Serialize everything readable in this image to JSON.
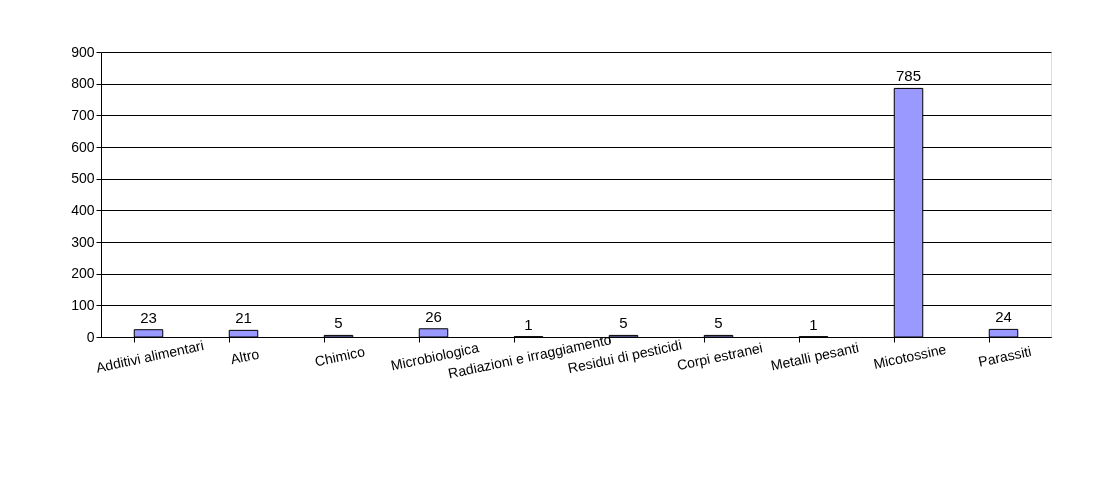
{
  "chart_data": {
    "type": "bar",
    "categories": [
      "Additivi alimentari",
      "Altro",
      "Chimico",
      "Microbiologica",
      "Radiazioni e irraggiamento",
      "Residui di pesticidi",
      "Corpi estranei",
      "Metalli pesanti",
      "Micotossine",
      "Parassiti"
    ],
    "values": [
      23,
      21,
      5,
      26,
      1,
      5,
      5,
      1,
      785,
      24
    ],
    "color": "#9999ff",
    "ylim": [
      0,
      900
    ],
    "yticks": [
      0,
      100,
      200,
      300,
      400,
      500,
      600,
      700,
      800,
      900
    ],
    "grid": "y",
    "data_labels": true
  }
}
